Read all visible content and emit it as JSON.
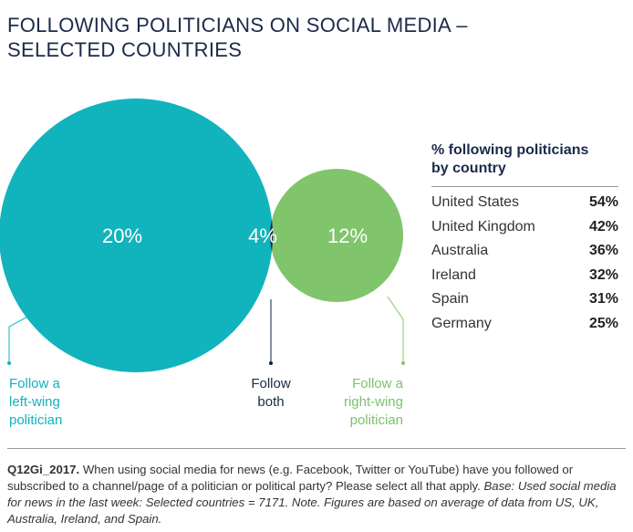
{
  "title": {
    "line1": "FOLLOWING POLITICIANS ON SOCIAL MEDIA –",
    "line2": "SELECTED COUNTRIES"
  },
  "venn": {
    "left_value": "20%",
    "overlap_value": "4%",
    "right_value": "12%",
    "left_label": [
      "Follow a",
      "left-wing",
      "politician"
    ],
    "overlap_label": [
      "Follow",
      "both"
    ],
    "right_label": [
      "Follow a",
      "right-wing",
      "politician"
    ],
    "colors": {
      "left": "#11b3bd",
      "overlap": "#0c1f4f",
      "right": "#80c56b"
    }
  },
  "table": {
    "heading": [
      "% following politicians",
      "by country"
    ],
    "rows": [
      {
        "country": "United States",
        "value": "54%"
      },
      {
        "country": "United Kingdom",
        "value": "42%"
      },
      {
        "country": "Australia",
        "value": "36%"
      },
      {
        "country": "Ireland",
        "value": "32%"
      },
      {
        "country": "Spain",
        "value": "31%"
      },
      {
        "country": "Germany",
        "value": "25%"
      }
    ]
  },
  "footnote": {
    "code": "Q12Gi_2017.",
    "question": " When using social media for news (e.g. Facebook, Twitter or YouTube) have you followed or subscribed to a channel/page of a politician or political party? Please select all that apply. ",
    "base": "Base: Used social media for news in the last week: Selected countries = 7171. Note. Figures are based on average of data from US, UK, Australia, Ireland, and Spain."
  }
}
